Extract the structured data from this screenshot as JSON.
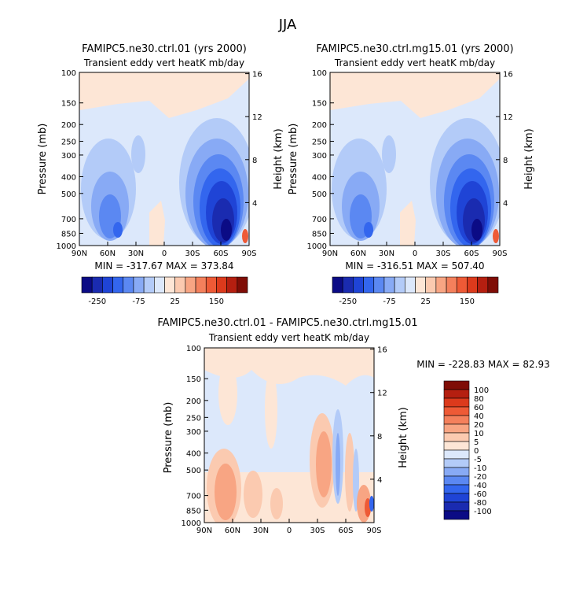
{
  "page_title": "JJA",
  "chart_data": [
    {
      "type": "heatmap",
      "title": "FAMIPC5.ne30.ctrl.01 (yrs 2000)",
      "subtitle": "Transient eddy vert heatK mb/day",
      "xlabel": "",
      "ylabel": "Pressure (mb)",
      "y2label": "Height (km)",
      "x_ticks": [
        "90N",
        "60N",
        "30N",
        "0",
        "30S",
        "60S",
        "90S"
      ],
      "y_ticks": [
        "100",
        "150",
        "200",
        "250",
        "300",
        "400",
        "500",
        "700",
        "850",
        "1000"
      ],
      "y2_ticks": [
        "16",
        "12",
        "8",
        "4"
      ],
      "stats_text": "MIN = -317.67   MAX = 373.84",
      "min": -317.67,
      "max": 373.84,
      "colorbar_labels": [
        "-250",
        "-75",
        "25",
        "150"
      ]
    },
    {
      "type": "heatmap",
      "title": "FAMIPC5.ne30.ctrl.mg15.01 (yrs 2000)",
      "subtitle": "Transient eddy vert heatK mb/day",
      "xlabel": "",
      "ylabel": "Pressure (mb)",
      "y2label": "Height (km)",
      "x_ticks": [
        "90N",
        "60N",
        "30N",
        "0",
        "30S",
        "60S",
        "90S"
      ],
      "y_ticks": [
        "100",
        "150",
        "200",
        "250",
        "300",
        "400",
        "500",
        "700",
        "850",
        "1000"
      ],
      "y2_ticks": [
        "16",
        "12",
        "8",
        "4"
      ],
      "stats_text": "MIN = -316.51   MAX = 507.40",
      "min": -316.51,
      "max": 507.4,
      "colorbar_labels": [
        "-250",
        "-75",
        "25",
        "150"
      ]
    },
    {
      "type": "heatmap",
      "title": "FAMIPC5.ne30.ctrl.01 - FAMIPC5.ne30.ctrl.mg15.01",
      "subtitle": "Transient eddy vert heatK mb/day",
      "xlabel": "",
      "ylabel": "Pressure (mb)",
      "y2label": "Height (km)",
      "x_ticks": [
        "90N",
        "60N",
        "30N",
        "0",
        "30S",
        "60S",
        "90S"
      ],
      "y_ticks": [
        "100",
        "150",
        "200",
        "250",
        "300",
        "400",
        "500",
        "700",
        "850",
        "1000"
      ],
      "y2_ticks": [
        "16",
        "12",
        "8",
        "4"
      ],
      "stats_text": "MIN = -228.83   MAX = 82.93",
      "min": -228.83,
      "max": 82.93,
      "colorbar_labels": [
        "100",
        "80",
        "60",
        "40",
        "20",
        "10",
        "5",
        "0",
        "-5",
        "-10",
        "-20",
        "-40",
        "-60",
        "-80",
        "-100"
      ]
    }
  ],
  "colors": {
    "top_colorbar": [
      "#0b0b85",
      "#1a2bb0",
      "#1f44d6",
      "#3366ee",
      "#5b88f2",
      "#88aaf5",
      "#b3cbf8",
      "#dce8fb",
      "#fde6d6",
      "#fbcab0",
      "#f8a583",
      "#f4805c",
      "#ee5a36",
      "#dc3a1c",
      "#b51f10",
      "#7f0d06"
    ],
    "diff_colorbar": [
      "#7f0d06",
      "#b51f10",
      "#dc3a1c",
      "#ee5a36",
      "#f4805c",
      "#f8a583",
      "#fbcab0",
      "#fde6d6",
      "#dce8fb",
      "#b3cbf8",
      "#88aaf5",
      "#5b88f2",
      "#3366ee",
      "#1f44d6",
      "#1a2bb0",
      "#0b0b85"
    ]
  }
}
